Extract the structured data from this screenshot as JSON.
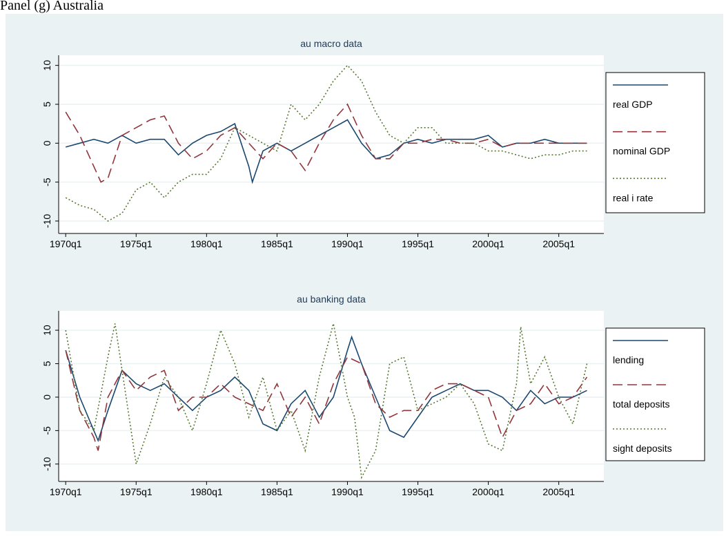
{
  "title": "Panel (g) Australia",
  "chart_data": [
    {
      "type": "line",
      "title": "au macro data",
      "xlim": [
        1969.5,
        2008.2
      ],
      "ylim": [
        -11.6,
        11.3
      ],
      "xticks": [
        {
          "value": 1970,
          "label": "1970q1"
        },
        {
          "value": 1975,
          "label": "1975q1"
        },
        {
          "value": 1980,
          "label": "1980q1"
        },
        {
          "value": 1985,
          "label": "1985q1"
        },
        {
          "value": 1990,
          "label": "1990q1"
        },
        {
          "value": 1995,
          "label": "1995q1"
        },
        {
          "value": 2000,
          "label": "2000q1"
        },
        {
          "value": 2005,
          "label": "2005q1"
        }
      ],
      "yticks": [
        -10,
        -5,
        0,
        5,
        10
      ],
      "grid": true,
      "legend": "right",
      "series": [
        {
          "name": "real GDP",
          "color": "#1a476f",
          "dash": "solid",
          "x": [
            1970,
            1971,
            1972,
            1973,
            1974,
            1975,
            1976,
            1977,
            1978,
            1979,
            1980,
            1981,
            1982,
            1983,
            1983.25,
            1984,
            1985,
            1986,
            1987,
            1988,
            1989,
            1990,
            1991,
            1992,
            1993,
            1994,
            1995,
            1996,
            1997,
            1998,
            1999,
            2000,
            2001,
            2002,
            2003,
            2004,
            2005,
            2006,
            2007
          ],
          "values": [
            -0.5,
            0,
            0.5,
            0,
            1,
            0,
            0.5,
            0.5,
            -1.5,
            0,
            1,
            1.5,
            2.5,
            -3,
            -5,
            -1,
            0,
            -1,
            0,
            1,
            2,
            3,
            0,
            -2,
            -1.5,
            0,
            0.5,
            0,
            0.5,
            0.5,
            0.5,
            1,
            -0.5,
            0,
            0,
            0.5,
            0,
            0,
            0
          ]
        },
        {
          "name": "nominal GDP",
          "color": "#90353b",
          "dash": "dashed",
          "x": [
            1970,
            1971,
            1972,
            1972.5,
            1973,
            1974,
            1975,
            1976,
            1977,
            1978,
            1979,
            1980,
            1981,
            1982,
            1983,
            1984,
            1985,
            1986,
            1987,
            1988,
            1989,
            1990,
            1991,
            1992,
            1993,
            1994,
            1995,
            1996,
            1997,
            1998,
            1999,
            2000,
            2001,
            2002,
            2003,
            2004,
            2005,
            2006,
            2007
          ],
          "values": [
            4,
            1,
            -3,
            -5,
            -4.5,
            1,
            2,
            3,
            3.5,
            0,
            -2,
            -1,
            1,
            2,
            0,
            -2,
            0,
            -1,
            -3.5,
            0,
            3,
            5,
            1,
            -2,
            -2,
            0,
            0,
            0.5,
            0.5,
            0,
            0,
            0.5,
            -0.5,
            0,
            0,
            0,
            0,
            0,
            0
          ]
        },
        {
          "name": "real i rate",
          "color": "#55752f",
          "dash": "dotted",
          "x": [
            1970,
            1971,
            1972,
            1973,
            1974,
            1975,
            1976,
            1977,
            1978,
            1979,
            1980,
            1981,
            1982,
            1983,
            1984,
            1985,
            1986,
            1987,
            1988,
            1989,
            1990,
            1991,
            1992,
            1993,
            1994,
            1995,
            1996,
            1997,
            1998,
            1999,
            2000,
            2001,
            2002,
            2003,
            2004,
            2005,
            2006,
            2007
          ],
          "values": [
            -7,
            -8,
            -8.5,
            -10,
            -9,
            -6,
            -5,
            -7,
            -5,
            -4,
            -4,
            -2,
            2,
            1,
            0,
            -1,
            5,
            3,
            5,
            8,
            10,
            8,
            4,
            1,
            0,
            2,
            2,
            0,
            0,
            0,
            -1,
            -1,
            -1.5,
            -2,
            -1.5,
            -1.5,
            -1,
            -1
          ]
        }
      ]
    },
    {
      "type": "line",
      "title": "au banking data",
      "xlim": [
        1969.5,
        2008.2
      ],
      "ylim": [
        -12.6,
        12.9
      ],
      "xticks": [
        {
          "value": 1970,
          "label": "1970q1"
        },
        {
          "value": 1975,
          "label": "1975q1"
        },
        {
          "value": 1980,
          "label": "1980q1"
        },
        {
          "value": 1985,
          "label": "1985q1"
        },
        {
          "value": 1990,
          "label": "1990q1"
        },
        {
          "value": 1995,
          "label": "1995q1"
        },
        {
          "value": 2000,
          "label": "2000q1"
        },
        {
          "value": 2005,
          "label": "2005q1"
        }
      ],
      "yticks": [
        -10,
        -5,
        0,
        5,
        10
      ],
      "grid": true,
      "legend": "right",
      "series": [
        {
          "name": "lending",
          "color": "#1a476f",
          "dash": "solid",
          "x": [
            1970,
            1971,
            1972,
            1972.3,
            1973,
            1974,
            1975,
            1976,
            1977,
            1978,
            1979,
            1980,
            1981,
            1982,
            1983,
            1984,
            1985,
            1986,
            1987,
            1988,
            1989,
            1990,
            1990.3,
            1991,
            1992,
            1993,
            1994,
            1995,
            1996,
            1997,
            1998,
            1999,
            2000,
            2001,
            2002,
            2003,
            2004,
            2005,
            2006,
            2007
          ],
          "values": [
            7,
            0,
            -5,
            -6.5,
            -2,
            4,
            2,
            1,
            2,
            0,
            -2,
            0,
            1,
            3,
            1,
            -4,
            -5,
            -1,
            1,
            -3,
            0,
            7,
            9,
            5,
            0,
            -5,
            -6,
            -3,
            0,
            1,
            2,
            1,
            1,
            0,
            -2,
            1,
            -1,
            0,
            0,
            1
          ]
        },
        {
          "name": "total deposits",
          "color": "#90353b",
          "dash": "dashed",
          "x": [
            1970,
            1971,
            1972,
            1972.3,
            1973,
            1974,
            1975,
            1976,
            1977,
            1978,
            1979,
            1980,
            1981,
            1982,
            1983,
            1984,
            1985,
            1986,
            1987,
            1988,
            1989,
            1990,
            1991,
            1992,
            1993,
            1994,
            1995,
            1996,
            1997,
            1998,
            1999,
            2000,
            2001,
            2002,
            2003,
            2004,
            2005,
            2006,
            2007
          ],
          "values": [
            7,
            -2,
            -6,
            -8,
            0,
            4,
            1,
            3,
            4,
            -2,
            0,
            0,
            2,
            0,
            -1,
            -2,
            2,
            -3,
            0,
            -4,
            2,
            6,
            5,
            -1,
            -3,
            -2,
            -2,
            1,
            2,
            2,
            1,
            0,
            -6,
            -2,
            -1,
            2,
            -1,
            0,
            3
          ]
        },
        {
          "name": "sight deposits",
          "color": "#55752f",
          "dash": "dotted",
          "x": [
            1970,
            1971,
            1972,
            1973,
            1973.5,
            1974,
            1975,
            1976,
            1977,
            1978,
            1979,
            1980,
            1981,
            1982,
            1983,
            1984,
            1985,
            1986,
            1987,
            1988,
            1989,
            1990,
            1990.5,
            1991,
            1992,
            1993,
            1994,
            1995,
            1996,
            1997,
            1998,
            1999,
            2000,
            2001,
            2002,
            2002.3,
            2003,
            2004,
            2005,
            2006,
            2007
          ],
          "values": [
            10,
            -2,
            -5,
            6,
            11,
            4,
            -10,
            -4,
            3,
            0,
            -5,
            2,
            10,
            5,
            -3,
            3,
            -5,
            -2,
            -8,
            3,
            11,
            0,
            -3,
            -12,
            -8,
            5,
            6,
            -2,
            -1,
            0,
            2,
            -1,
            -7,
            -8,
            2,
            10.5,
            2,
            6,
            0,
            -4,
            5
          ]
        }
      ]
    }
  ]
}
